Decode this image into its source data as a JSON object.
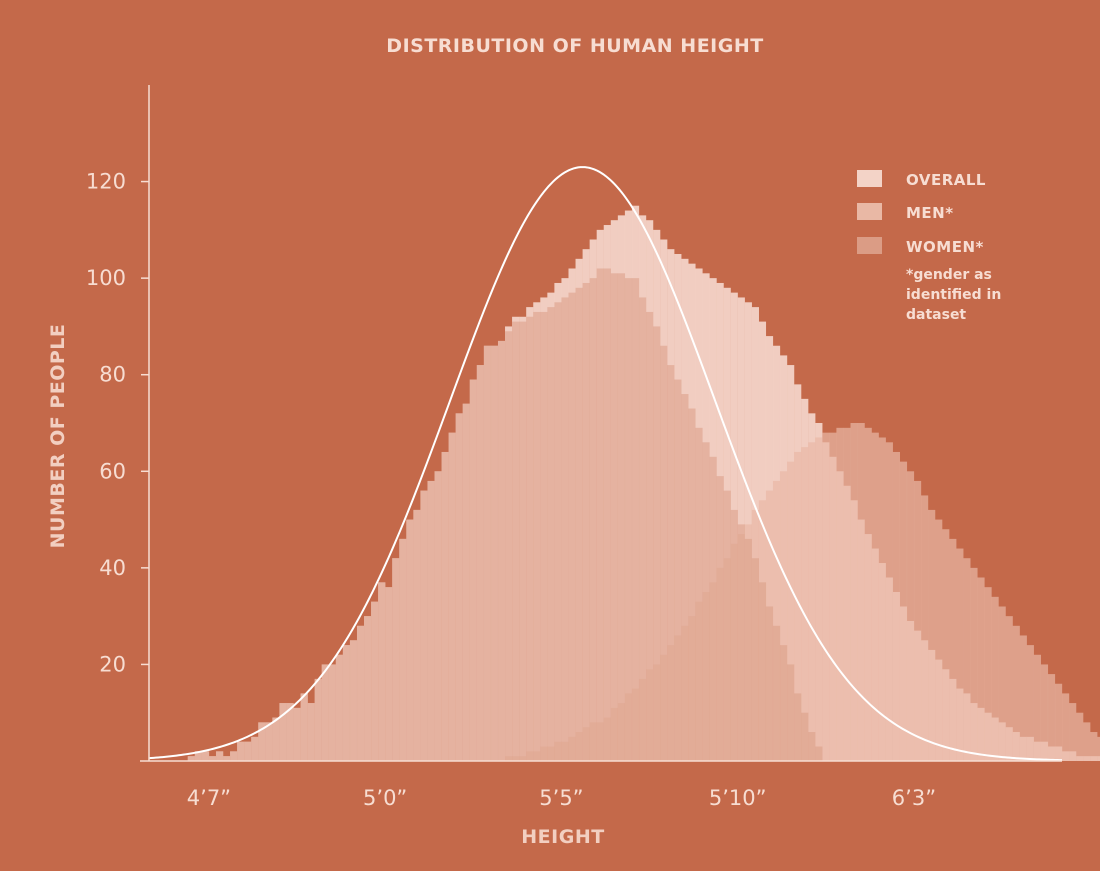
{
  "chart_data": {
    "type": "bar",
    "title": "DISTRIBUTION OF HUMAN HEIGHT",
    "xlabel": "HEIGHT",
    "ylabel": "NUMBER OF PEOPLE",
    "ylim": [
      0,
      140
    ],
    "yticks": [
      20,
      40,
      60,
      80,
      100,
      120
    ],
    "xlim": [
      53.3,
      79.2
    ],
    "xticks": [
      {
        "value": 55,
        "label": "4’7”"
      },
      {
        "value": 60,
        "label": "5’0”"
      },
      {
        "value": 65,
        "label": "5’5”"
      },
      {
        "value": 70,
        "label": "5’10”"
      },
      {
        "value": 75,
        "label": "6’3”"
      }
    ],
    "bin_width": 0.2,
    "x_start": 54.2,
    "legend": {
      "position": "top-right",
      "items": [
        {
          "label": "OVERALL",
          "color": "#f3d3c7"
        },
        {
          "label": "MEN*",
          "color": "#e9b8a5"
        },
        {
          "label": "WOMEN*",
          "color": "#db9c85"
        }
      ],
      "note": [
        "*gender as",
        "identified in",
        "dataset"
      ]
    },
    "fit_curve": {
      "mean": 65.6,
      "sd": 3.76,
      "peak": 123
    },
    "series": [
      {
        "name": "OVERALL",
        "color": "#f3d3c7",
        "values": [
          0,
          1,
          2,
          2,
          1,
          2,
          1,
          2,
          4,
          4,
          5,
          8,
          8,
          9,
          12,
          12,
          11,
          14,
          12,
          17,
          20,
          20,
          22,
          24,
          25,
          28,
          30,
          33,
          37,
          36,
          42,
          46,
          50,
          52,
          56,
          58,
          60,
          64,
          68,
          72,
          74,
          79,
          82,
          86,
          86,
          87,
          90,
          92,
          92,
          94,
          95,
          96,
          97,
          99,
          100,
          102,
          104,
          106,
          108,
          110,
          111,
          112,
          113,
          114,
          115,
          113,
          112,
          110,
          108,
          106,
          105,
          104,
          103,
          102,
          101,
          100,
          99,
          98,
          97,
          96,
          95,
          94,
          91,
          88,
          86,
          84,
          82,
          78,
          75,
          72,
          70,
          66,
          63,
          60,
          57,
          54,
          50,
          47,
          44,
          41,
          38,
          35,
          32,
          29,
          27,
          25,
          23,
          21,
          19,
          17,
          15,
          14,
          12,
          11,
          10,
          9,
          8,
          7,
          6,
          5,
          5,
          4,
          4,
          3,
          3,
          2,
          2,
          1,
          1,
          1,
          1,
          0,
          0,
          0,
          0,
          0
        ]
      },
      {
        "name": "MEN*",
        "color": "#e9b8a5",
        "values": [
          0,
          0,
          0,
          0,
          0,
          0,
          0,
          0,
          0,
          0,
          0,
          0,
          0,
          0,
          0,
          0,
          0,
          0,
          0,
          0,
          0,
          0,
          0,
          0,
          0,
          0,
          0,
          0,
          0,
          0,
          0,
          0,
          0,
          0,
          0,
          0,
          0,
          0,
          0,
          0,
          0,
          0,
          0,
          0,
          0,
          0,
          1,
          1,
          1,
          2,
          2,
          3,
          3,
          4,
          4,
          5,
          6,
          7,
          8,
          8,
          9,
          11,
          12,
          14,
          15,
          17,
          19,
          20,
          22,
          24,
          26,
          28,
          30,
          33,
          35,
          37,
          40,
          42,
          45,
          47,
          49,
          52,
          54,
          56,
          58,
          60,
          62,
          64,
          65,
          66,
          67,
          68,
          68,
          69,
          69,
          70,
          70,
          69,
          68,
          67,
          66,
          64,
          62,
          60,
          58,
          55,
          52,
          50,
          48,
          46,
          44,
          42,
          40,
          38,
          36,
          34,
          32,
          30,
          28,
          26,
          24,
          22,
          20,
          18,
          16,
          14,
          12,
          10,
          8,
          6,
          5,
          4,
          3,
          2,
          1,
          0
        ]
      },
      {
        "name": "WOMEN*",
        "color": "#db9c85",
        "values": [
          0,
          1,
          2,
          2,
          1,
          2,
          1,
          2,
          4,
          4,
          5,
          8,
          8,
          9,
          12,
          12,
          11,
          14,
          12,
          17,
          20,
          20,
          22,
          24,
          25,
          28,
          30,
          33,
          37,
          36,
          42,
          46,
          50,
          52,
          56,
          58,
          60,
          64,
          68,
          72,
          74,
          79,
          82,
          86,
          86,
          87,
          89,
          91,
          91,
          92,
          93,
          93,
          94,
          95,
          96,
          97,
          98,
          99,
          100,
          102,
          102,
          101,
          101,
          100,
          100,
          96,
          93,
          90,
          86,
          82,
          79,
          76,
          73,
          69,
          66,
          63,
          59,
          56,
          52,
          49,
          46,
          42,
          37,
          32,
          28,
          24,
          20,
          14,
          10,
          6,
          3,
          0,
          0,
          0,
          0,
          0,
          0,
          0,
          0,
          0,
          0,
          0,
          0,
          0,
          0,
          0,
          0,
          0,
          0,
          0,
          0,
          0,
          0,
          0,
          0,
          0,
          0,
          0,
          0,
          0,
          0,
          0,
          0,
          0,
          0,
          0,
          0,
          0,
          0,
          0,
          0,
          0,
          0,
          0,
          0,
          0
        ]
      }
    ]
  }
}
